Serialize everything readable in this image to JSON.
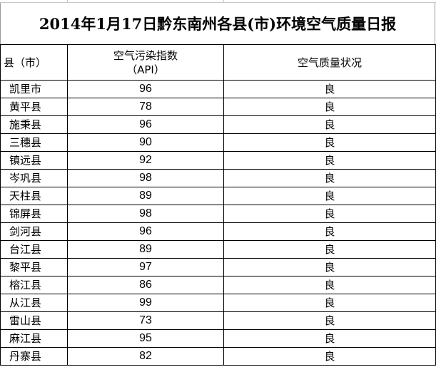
{
  "title": "2014年1月17日黔东南州各县(市)环境空气质量日报",
  "headers": {
    "county": "县（市）",
    "api_line1": "空气污染指数",
    "api_line2": "（API）",
    "status": "空气质量状况"
  },
  "rows": [
    {
      "county": "凯里市",
      "api": "96",
      "status": "良"
    },
    {
      "county": "黄平县",
      "api": "78",
      "status": "良"
    },
    {
      "county": "施秉县",
      "api": "96",
      "status": "良"
    },
    {
      "county": "三穗县",
      "api": "90",
      "status": "良"
    },
    {
      "county": "镇远县",
      "api": "92",
      "status": "良"
    },
    {
      "county": "岑巩县",
      "api": "98",
      "status": "良"
    },
    {
      "county": "天柱县",
      "api": "89",
      "status": "良"
    },
    {
      "county": "锦屏县",
      "api": "98",
      "status": "良"
    },
    {
      "county": "剑河县",
      "api": "96",
      "status": "良"
    },
    {
      "county": "台江县",
      "api": "89",
      "status": "良"
    },
    {
      "county": "黎平县",
      "api": "97",
      "status": "良"
    },
    {
      "county": "榕江县",
      "api": "86",
      "status": "良"
    },
    {
      "county": "从江县",
      "api": "99",
      "status": "良"
    },
    {
      "county": "雷山县",
      "api": "73",
      "status": "良"
    },
    {
      "county": "麻江县",
      "api": "95",
      "status": "良"
    },
    {
      "county": "丹寨县",
      "api": "82",
      "status": "良"
    }
  ]
}
